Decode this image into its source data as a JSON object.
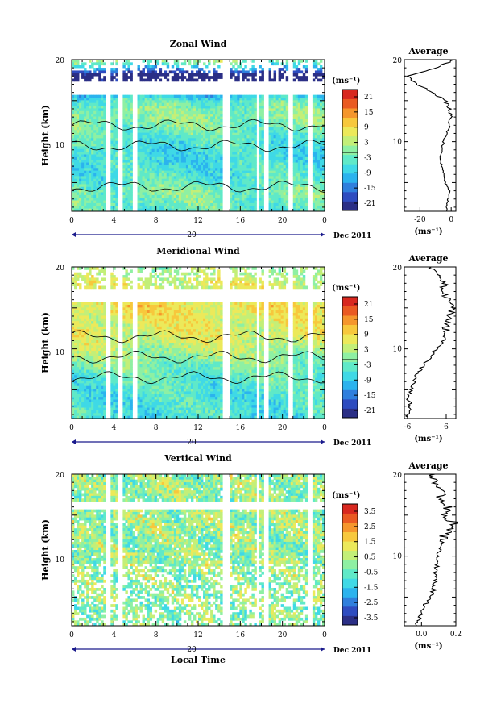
{
  "panels": [
    {
      "title": "Zonal Wind",
      "ylabel": "Height (km)",
      "units": "(ms⁻¹)",
      "colorbar_ticks": [
        "21",
        "15",
        "9",
        "3",
        "-3",
        "-9",
        "-15",
        "-21"
      ],
      "avg_title": "Average",
      "avg_xticks": [
        "-20",
        "0"
      ],
      "avg_units": "(ms⁻¹)"
    },
    {
      "title": "Meridional Wind",
      "ylabel": "Height (km)",
      "units": "(ms⁻¹)",
      "colorbar_ticks": [
        "21",
        "15",
        "9",
        "3",
        "-3",
        "-9",
        "-15",
        "-21"
      ],
      "avg_title": "Average",
      "avg_xticks": [
        "-6",
        "6"
      ],
      "avg_units": "(ms⁻¹)"
    },
    {
      "title": "Vertical Wind",
      "ylabel": "Height (km)",
      "units": "(ms⁻¹)",
      "colorbar_ticks": [
        "3.5",
        "2.5",
        "1.5",
        "0.5",
        "-0.5",
        "-1.5",
        "-2.5",
        "-3.5"
      ],
      "avg_title": "Average",
      "avg_xticks": [
        "0.0",
        "0.2"
      ],
      "avg_units": "(ms⁻¹)"
    }
  ],
  "time_axis": {
    "hour_ticks": [
      "0",
      "4",
      "8",
      "12",
      "16",
      "20",
      "0"
    ],
    "day_label": "20",
    "month_label": "Dec 2011",
    "xlabel": "Local Time"
  },
  "height_ticks": [
    "20",
    "10"
  ],
  "colors": {
    "colorbar": [
      "#2b2f86",
      "#2e4cc0",
      "#2f7fdd",
      "#2bb3ee",
      "#3fd9e6",
      "#5fe9c8",
      "#8ef0a3",
      "#c3ef78",
      "#ece95a",
      "#f7c83c",
      "#f5962c",
      "#ea5a22",
      "#d8281f"
    ],
    "nan": "#ffffff",
    "axis": "#000000",
    "time_bar": "#1a1a8c"
  },
  "chart_data": [
    {
      "type": "heatmap",
      "title": "Zonal Wind",
      "xlabel": "",
      "ylabel": "Height (km)",
      "xlim_hours": [
        0,
        24
      ],
      "ylim_km": [
        1.5,
        20
      ],
      "clim": [
        -24,
        24
      ],
      "units": "ms^-1",
      "gaps_hours": [
        [
          3.2,
          3.8
        ],
        [
          4.4,
          4.8
        ],
        [
          5.8,
          6.2
        ],
        [
          14.2,
          14.9
        ],
        [
          17.5,
          17.8
        ],
        [
          18.3,
          18.7
        ],
        [
          20.5,
          20.9
        ],
        [
          22.4,
          22.8
        ]
      ],
      "profile_km": [
        2,
        3,
        4,
        5,
        6,
        7,
        8,
        9,
        10,
        11,
        12,
        13,
        14,
        15,
        16,
        17,
        18,
        19,
        20
      ],
      "profile_ms": [
        -3,
        -2,
        -1,
        -4,
        -5,
        -6,
        -7,
        -6,
        -5,
        -3,
        -1,
        0,
        -1,
        -4,
        -12,
        -22,
        -28,
        -10,
        2
      ],
      "avg_xlim": [
        -30,
        3
      ],
      "contour_level": 0
    },
    {
      "type": "heatmap",
      "title": "Meridional Wind",
      "xlabel": "",
      "ylabel": "Height (km)",
      "xlim_hours": [
        0,
        24
      ],
      "ylim_km": [
        1.5,
        20
      ],
      "clim": [
        -24,
        24
      ],
      "units": "ms^-1",
      "gaps_hours": [
        [
          3.2,
          3.8
        ],
        [
          4.4,
          4.8
        ],
        [
          5.8,
          6.2
        ],
        [
          14.2,
          14.9
        ],
        [
          17.5,
          17.8
        ],
        [
          18.3,
          18.7
        ],
        [
          20.5,
          20.9
        ],
        [
          22.4,
          22.8
        ]
      ],
      "profile_km": [
        2,
        3,
        4,
        5,
        6,
        7,
        8,
        9,
        10,
        11,
        12,
        13,
        14,
        15,
        16,
        17,
        18,
        19,
        20
      ],
      "profile_ms": [
        -6,
        -5,
        -6,
        -5,
        -4,
        -3,
        -1,
        1,
        3,
        5,
        6,
        6,
        7,
        8,
        7,
        4,
        6,
        3,
        1
      ],
      "avg_xlim": [
        -7,
        9
      ],
      "contour_level": 0
    },
    {
      "type": "heatmap",
      "title": "Vertical Wind",
      "xlabel": "Local Time",
      "ylabel": "Height (km)",
      "xlim_hours": [
        0,
        24
      ],
      "ylim_km": [
        1.5,
        20
      ],
      "clim": [
        -4,
        4
      ],
      "units": "ms^-1",
      "gaps_hours": [
        [
          3.2,
          3.8
        ],
        [
          4.4,
          4.8
        ],
        [
          14.2,
          14.9
        ],
        [
          17.5,
          17.8
        ],
        [
          18.3,
          18.7
        ],
        [
          22.4,
          22.8
        ]
      ],
      "profile_km": [
        2,
        3,
        4,
        5,
        6,
        7,
        8,
        9,
        10,
        11,
        12,
        13,
        14,
        15,
        16,
        17,
        18,
        19,
        20
      ],
      "profile_ms": [
        -0.03,
        0.0,
        0.02,
        0.05,
        0.07,
        0.08,
        0.08,
        0.09,
        0.1,
        0.1,
        0.12,
        0.15,
        0.19,
        0.13,
        0.16,
        0.1,
        0.12,
        0.09,
        0.05
      ],
      "avg_xlim": [
        -0.1,
        0.2
      ]
    }
  ]
}
